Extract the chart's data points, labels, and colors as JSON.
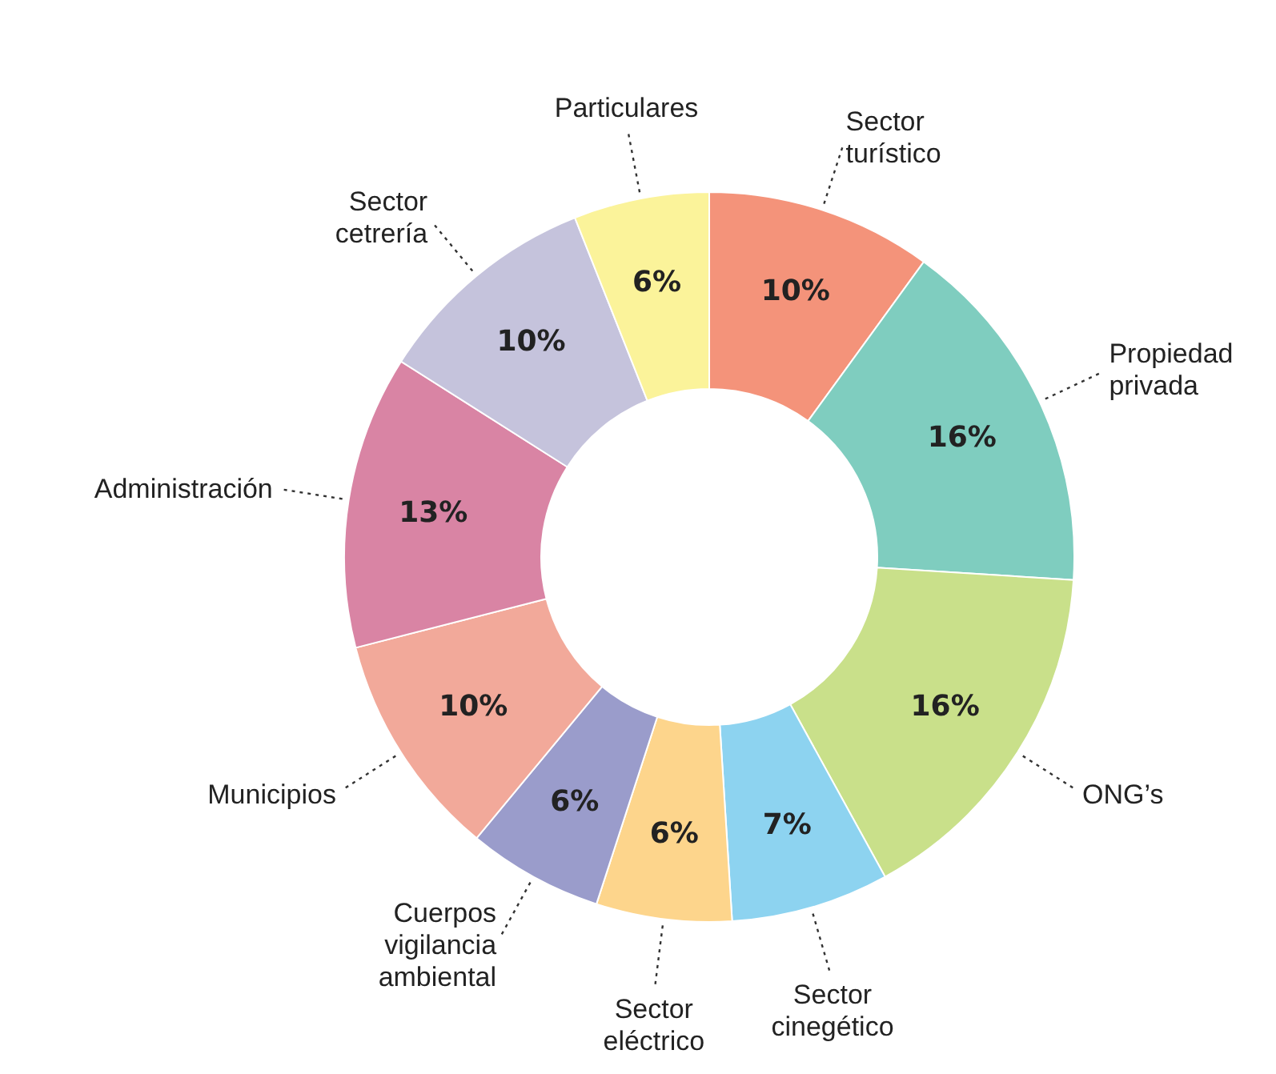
{
  "chart_data": {
    "type": "donut",
    "categories": [
      "Sector turístico",
      "Propiedad privada",
      "ONG’s",
      "Sector cinegético",
      "Sector eléctrico",
      "Cuerpos vigilancia ambiental",
      "Municipios",
      "Administración",
      "Sector cetrería",
      "Particulares"
    ],
    "values": [
      10,
      16,
      16,
      7,
      6,
      6,
      10,
      13,
      10,
      6
    ],
    "colors": [
      "#f4937a",
      "#7fcdbf",
      "#c9e08a",
      "#8dd3f0",
      "#fdd58c",
      "#9a9ccb",
      "#f2a99a",
      "#d984a4",
      "#c5c3dc",
      "#fbf39a"
    ],
    "value_labels": [
      "10%",
      "16%",
      "16%",
      "7%",
      "6%",
      "6%",
      "10%",
      "13%",
      "10%",
      "6%"
    ],
    "legend": false
  }
}
